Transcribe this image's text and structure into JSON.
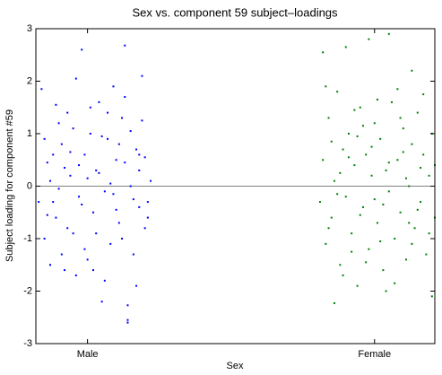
{
  "chart_data": {
    "type": "scatter",
    "title": "Sex vs. component 59 subject–loadings",
    "x_label": "Sex",
    "y_label": "Subject loading for component #59",
    "xlim": [
      0.82,
      2.21
    ],
    "xticks": [
      {
        "value": 1,
        "label": "Male"
      },
      {
        "value": 2,
        "label": "Female"
      }
    ],
    "ylim": [
      -3,
      3
    ],
    "yticks": [
      -3,
      -2,
      -1,
      0,
      1,
      2,
      3
    ],
    "hline": 0,
    "series": [
      {
        "color": "#0000ff",
        "x": [
          0.84,
          0.86,
          0.88,
          0.9,
          0.85,
          0.87,
          0.89,
          0.91,
          0.92,
          0.93,
          0.94,
          0.95,
          0.96,
          0.97,
          0.98,
          0.99,
          1.0,
          1.01,
          1.02,
          1.03,
          1.04,
          1.05,
          1.06,
          1.07,
          1.08,
          1.09,
          1.1,
          1.11,
          1.12,
          1.13,
          1.14,
          1.14,
          1.15,
          1.16,
          1.17,
          1.18,
          1.19,
          1.2,
          1.21,
          1.21,
          0.83,
          0.85,
          0.87,
          0.88,
          0.9,
          0.92,
          0.93,
          0.95,
          0.96,
          0.97,
          0.99,
          1.0,
          1.01,
          1.03,
          1.04,
          1.06,
          1.07,
          1.08,
          1.1,
          1.11,
          1.12,
          1.13,
          1.15,
          1.16,
          1.17,
          1.18,
          1.19,
          1.2,
          1.14,
          0.86,
          0.89,
          0.91,
          0.94,
          0.98,
          1.02,
          1.05,
          1.09,
          1.13,
          1.18,
          1.22
        ],
        "values": [
          1.85,
          0.45,
          -0.3,
          1.2,
          -1.0,
          0.1,
          -0.6,
          0.8,
          -1.6,
          1.4,
          0.2,
          -0.9,
          2.05,
          -0.2,
          2.6,
          0.6,
          -1.4,
          1.0,
          -0.5,
          0.3,
          1.6,
          -2.2,
          -0.1,
          0.9,
          -1.1,
          1.9,
          0.5,
          -0.7,
          1.3,
          2.68,
          -2.27,
          -2.55,
          0.0,
          -1.3,
          0.7,
          -0.4,
          2.1,
          0.55,
          -0.3,
          -0.6,
          -0.3,
          0.9,
          -1.5,
          0.6,
          -0.05,
          0.35,
          -0.8,
          1.1,
          -1.7,
          0.4,
          -1.2,
          0.15,
          1.5,
          -0.9,
          0.25,
          -1.8,
          1.4,
          0.05,
          -0.45,
          0.8,
          -1.0,
          0.45,
          1.05,
          -0.25,
          -1.9,
          0.3,
          1.25,
          -0.8,
          -2.6,
          -0.55,
          1.55,
          -1.3,
          0.65,
          -0.35,
          -1.6,
          0.95,
          -0.15,
          1.7,
          0.6,
          0.1
        ]
      },
      {
        "color": "#008000",
        "x": [
          1.82,
          1.86,
          1.9,
          1.98,
          2.05,
          2.13,
          1.81,
          1.82,
          1.83,
          1.84,
          1.85,
          1.86,
          1.87,
          1.88,
          1.89,
          1.9,
          1.91,
          1.92,
          1.93,
          1.94,
          1.95,
          1.96,
          1.97,
          1.98,
          1.99,
          2.0,
          2.01,
          2.02,
          2.03,
          2.04,
          2.05,
          2.06,
          2.07,
          2.08,
          2.09,
          2.1,
          2.11,
          2.12,
          2.13,
          2.14,
          2.15,
          2.16,
          2.17,
          2.18,
          2.19,
          2.2,
          2.21,
          1.83,
          1.85,
          1.87,
          1.89,
          1.91,
          1.93,
          1.95,
          1.97,
          1.99,
          2.01,
          2.03,
          2.05,
          2.07,
          2.09,
          2.11,
          2.13,
          2.15,
          2.17,
          2.19,
          2.21,
          1.84,
          1.88,
          1.92,
          1.96,
          2.0,
          2.04,
          2.08,
          2.12,
          2.16,
          2.2,
          1.94,
          2.02,
          2.1
        ],
        "values": [
          2.55,
          -2.23,
          2.65,
          2.8,
          2.9,
          2.2,
          -0.3,
          0.5,
          -1.1,
          1.3,
          -0.6,
          0.1,
          1.8,
          -1.5,
          0.7,
          -0.2,
          1.0,
          -0.9,
          0.4,
          -1.9,
          1.5,
          -0.4,
          0.6,
          -1.2,
          0.2,
          1.2,
          -0.7,
          0.9,
          -1.6,
          0.3,
          -0.1,
          1.6,
          -1.0,
          0.5,
          -0.5,
          1.1,
          -1.4,
          0.0,
          0.8,
          -0.8,
          1.4,
          -0.3,
          0.6,
          -1.3,
          0.2,
          1.0,
          -0.6,
          1.9,
          0.85,
          -0.15,
          -1.7,
          0.55,
          1.45,
          -0.55,
          -1.45,
          0.75,
          1.65,
          -0.35,
          0.45,
          -1.85,
          1.3,
          0.15,
          -1.1,
          -0.45,
          1.75,
          -0.9,
          0.4,
          -0.8,
          0.25,
          -1.25,
          1.15,
          -0.25,
          -2.0,
          1.85,
          -0.7,
          0.35,
          -2.1,
          0.95,
          -1.05,
          0.65
        ]
      }
    ]
  }
}
